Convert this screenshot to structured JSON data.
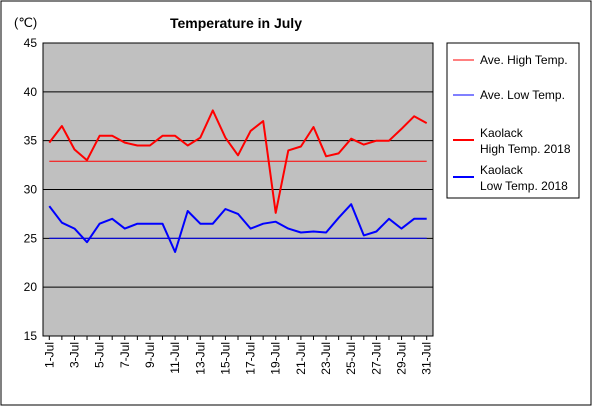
{
  "chart_data": {
    "type": "line",
    "title": "Temperature in July",
    "unit": "(℃)",
    "xlabel": "",
    "ylabel": "",
    "ylim": [
      15,
      45
    ],
    "yticks": [
      15,
      20,
      25,
      30,
      35,
      40,
      45
    ],
    "grid": true,
    "legend_position": "right",
    "plot_background": "#c0c0c0",
    "categories": [
      "1-Jul",
      "2-Jul",
      "3-Jul",
      "4-Jul",
      "5-Jul",
      "6-Jul",
      "7-Jul",
      "8-Jul",
      "9-Jul",
      "10-Jul",
      "11-Jul",
      "12-Jul",
      "13-Jul",
      "14-Jul",
      "15-Jul",
      "16-Jul",
      "17-Jul",
      "18-Jul",
      "19-Jul",
      "20-Jul",
      "21-Jul",
      "22-Jul",
      "23-Jul",
      "24-Jul",
      "25-Jul",
      "26-Jul",
      "27-Jul",
      "28-Jul",
      "29-Jul",
      "30-Jul",
      "31-Jul"
    ],
    "xtick_labels": [
      "1-Jul",
      "3-Jul",
      "5-Jul",
      "7-Jul",
      "9-Jul",
      "11-Jul",
      "13-Jul",
      "15-Jul",
      "17-Jul",
      "19-Jul",
      "21-Jul",
      "23-Jul",
      "25-Jul",
      "27-Jul",
      "29-Jul",
      "31-Jul"
    ],
    "series": [
      {
        "name": "Ave. High Temp.",
        "color": "#ff0000",
        "width": 1,
        "values": [
          32.9,
          32.9,
          32.9,
          32.9,
          32.9,
          32.9,
          32.9,
          32.9,
          32.9,
          32.9,
          32.9,
          32.9,
          32.9,
          32.9,
          32.9,
          32.9,
          32.9,
          32.9,
          32.9,
          32.9,
          32.9,
          32.9,
          32.9,
          32.9,
          32.9,
          32.9,
          32.9,
          32.9,
          32.9,
          32.9,
          32.9
        ]
      },
      {
        "name": "Ave. Low Temp.",
        "color": "#0000ff",
        "width": 1,
        "values": [
          25.0,
          25.0,
          25.0,
          25.0,
          25.0,
          25.0,
          25.0,
          25.0,
          25.0,
          25.0,
          25.0,
          25.0,
          25.0,
          25.0,
          25.0,
          25.0,
          25.0,
          25.0,
          25.0,
          25.0,
          25.0,
          25.0,
          25.0,
          25.0,
          25.0,
          25.0,
          25.0,
          25.0,
          25.0,
          25.0,
          25.0
        ]
      },
      {
        "name": "Kaolack High Temp. 2018",
        "legend_lines": [
          "Kaolack",
          "High Temp. 2018"
        ],
        "color": "#ff0000",
        "width": 2,
        "values": [
          34.8,
          36.5,
          34.1,
          33.0,
          35.5,
          35.5,
          34.8,
          34.5,
          34.5,
          35.5,
          35.5,
          34.5,
          35.3,
          38.1,
          35.3,
          33.5,
          36.0,
          37.0,
          27.6,
          34.0,
          34.4,
          36.4,
          33.4,
          33.7,
          35.2,
          34.6,
          35.0,
          35.0,
          36.2,
          37.5,
          36.8
        ]
      },
      {
        "name": "Kaolack Low Temp. 2018",
        "legend_lines": [
          "Kaolack",
          "Low Temp. 2018"
        ],
        "color": "#0000ff",
        "width": 2,
        "values": [
          28.3,
          26.6,
          26.0,
          24.6,
          26.5,
          27.0,
          26.0,
          26.5,
          26.5,
          26.5,
          23.6,
          27.8,
          26.5,
          26.5,
          28.0,
          27.5,
          26.0,
          26.5,
          26.7,
          26.0,
          25.6,
          25.7,
          25.6,
          27.1,
          28.5,
          25.3,
          25.7,
          27.0,
          26.0,
          27.0,
          27.0
        ]
      }
    ]
  }
}
